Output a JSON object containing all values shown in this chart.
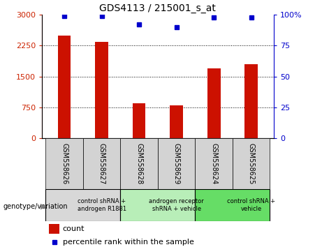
{
  "title": "GDS4113 / 215001_s_at",
  "samples": [
    "GSM558626",
    "GSM558627",
    "GSM558628",
    "GSM558629",
    "GSM558624",
    "GSM558625"
  ],
  "counts": [
    2500,
    2350,
    850,
    800,
    1700,
    1800
  ],
  "percentile_ranks": [
    99,
    99,
    92,
    90,
    98,
    98
  ],
  "ylim_left": [
    0,
    3000
  ],
  "ylim_right": [
    0,
    100
  ],
  "yticks_left": [
    0,
    750,
    1500,
    2250,
    3000
  ],
  "yticks_right": [
    0,
    25,
    50,
    75,
    100
  ],
  "bar_color": "#cc1100",
  "dot_color": "#0000cc",
  "groups": [
    {
      "label": "control shRNA +\nandrogen R1881",
      "start": 0,
      "end": 2,
      "color": "#d8d8d8"
    },
    {
      "label": "androgen receptor\nshRNA + vehicle",
      "start": 2,
      "end": 4,
      "color": "#b8eeb8"
    },
    {
      "label": "control shRNA +\nvehicle",
      "start": 4,
      "end": 6,
      "color": "#66dd66"
    }
  ],
  "legend_count_label": "count",
  "legend_percentile_label": "percentile rank within the sample",
  "genotype_label": "genotype/variation",
  "tick_label_area_color": "#d3d3d3",
  "bar_width": 0.35
}
